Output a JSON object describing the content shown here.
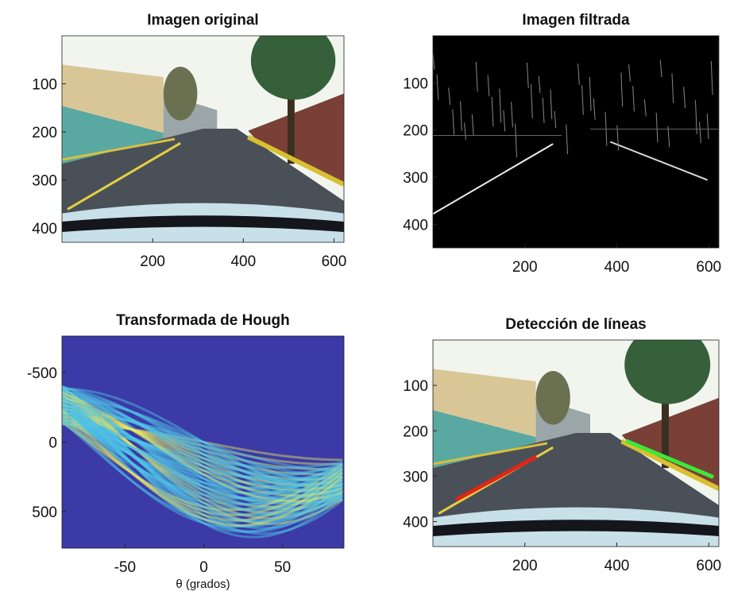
{
  "chart_data": [
    {
      "type": "image",
      "title": "Imagen original",
      "xlim": [
        0,
        622
      ],
      "ylim": [
        0,
        430
      ],
      "y_reversed": true,
      "xticks": [
        200,
        400,
        600
      ],
      "yticks": [
        100,
        200,
        300,
        400
      ]
    },
    {
      "type": "image",
      "title": "Imagen filtrada",
      "xlim": [
        0,
        622
      ],
      "ylim": [
        0,
        450
      ],
      "y_reversed": true,
      "xticks": [
        200,
        400,
        600
      ],
      "yticks": [
        100,
        200,
        300,
        400
      ]
    },
    {
      "type": "image",
      "title": "Transformada de Hough",
      "xlabel": "θ (grados)",
      "xlim": [
        -90,
        89
      ],
      "ylim": [
        -765,
        765
      ],
      "y_reversed": true,
      "xticks": [
        -50,
        0,
        50
      ],
      "yticks": [
        -500,
        0,
        500
      ]
    },
    {
      "type": "image",
      "title": "Detección de líneas",
      "xlim": [
        0,
        622
      ],
      "ylim": [
        0,
        455
      ],
      "y_reversed": true,
      "xticks": [
        200,
        400,
        600
      ],
      "yticks": [
        100,
        200,
        300,
        400
      ],
      "segments": [
        {
          "color": "#e02418",
          "x": [
            50,
            225
          ],
          "y": [
            352,
            257
          ]
        },
        {
          "color": "#3ee83a",
          "x": [
            420,
            610
          ],
          "y": [
            222,
            302
          ]
        }
      ]
    }
  ]
}
